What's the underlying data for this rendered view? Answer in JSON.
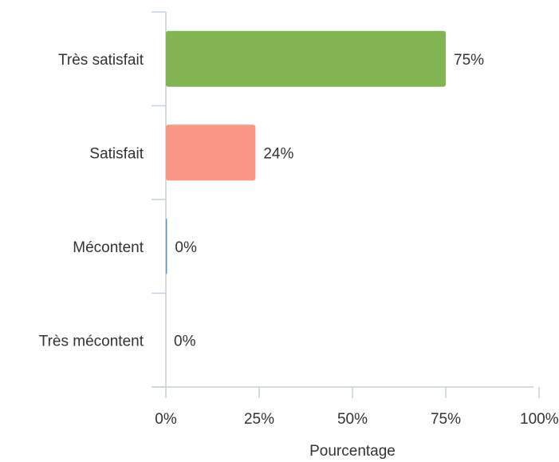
{
  "chart_data": {
    "type": "bar",
    "orientation": "horizontal",
    "categories": [
      "Très satisfait",
      "Satisfait",
      "Mécontent",
      "Très mécontent"
    ],
    "values": [
      75,
      24,
      0.3,
      0
    ],
    "value_labels": [
      "75%",
      "24%",
      "0%",
      "0%"
    ],
    "colors": [
      "#82b552",
      "#fa9784",
      "#5b8ec9",
      "#3b5ea0"
    ],
    "xlabel": "Pourcentage",
    "xlim": [
      0,
      100
    ],
    "xticks": [
      {
        "value": 0,
        "label": "0%"
      },
      {
        "value": 25,
        "label": "25%"
      },
      {
        "value": 50,
        "label": "50%"
      },
      {
        "value": 75,
        "label": "75%"
      },
      {
        "value": 100,
        "label": "100%"
      }
    ]
  }
}
